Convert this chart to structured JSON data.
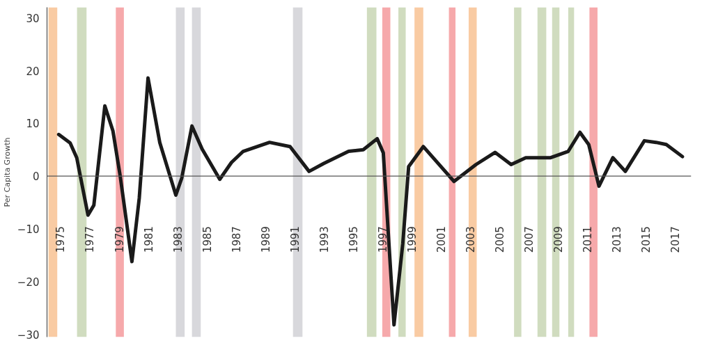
{
  "chart_data": {
    "type": "line",
    "ylabel": "Per Capita Growth",
    "x": [
      1974.9,
      1975.68,
      1976.13,
      1976.9,
      1977.3,
      1978.05,
      1978.6,
      1979.1,
      1979.9,
      1980.4,
      1981.0,
      1981.8,
      1982.9,
      1983.3,
      1984.0,
      1984.7,
      1985.9,
      1986.7,
      1987.5,
      1989.3,
      1990.7,
      1992.0,
      1993.0,
      1994.7,
      1995.7,
      1996.65,
      1997.07,
      1997.8,
      1998.4,
      1998.8,
      1999.8,
      2001.9,
      2003.4,
      2004.7,
      2005.8,
      2006.8,
      2008.5,
      2009.7,
      2010.5,
      2011.1,
      2011.8,
      2012.75,
      2013.6,
      2014.9,
      2015.7,
      2016.4,
      2017.5
    ],
    "series": [
      {
        "color": "#1a1a1a",
        "values": [
          7.9,
          6.3,
          3.5,
          -7.4,
          -5.5,
          13.3,
          8.6,
          0,
          -16.2,
          -4.2,
          18.6,
          6.4,
          -3.6,
          -0.4,
          9.5,
          5.1,
          -0.6,
          2.6,
          4.7,
          6.4,
          5.6,
          0.9,
          2.4,
          4.7,
          5.0,
          7.1,
          4.4,
          -28.2,
          -12.8,
          1.8,
          5.6,
          -1.0,
          2.2,
          4.5,
          2.2,
          3.5,
          3.5,
          4.7,
          8.3,
          6.0,
          -1.9,
          3.5,
          0.9,
          6.7,
          6.4,
          6.0,
          3.7
        ]
      }
    ],
    "xlim": [
      1974.1,
      2018.1
    ],
    "xticks": [
      1975,
      1977,
      1979,
      1981,
      1983,
      1985,
      1987,
      1989,
      1991,
      1993,
      1995,
      1997,
      1999,
      2001,
      2003,
      2005,
      2007,
      2009,
      2011,
      2013,
      2015,
      2017
    ],
    "ylim": [
      -30.5,
      32
    ],
    "yticks": [
      -30,
      -20,
      -10,
      0,
      10,
      20,
      30
    ],
    "bands": [
      {
        "axis": "x",
        "from": 1974.2,
        "to": 1974.8,
        "color": "#f9cba3"
      },
      {
        "axis": "x",
        "from": 1976.15,
        "to": 1976.8,
        "color": "#d0dcbf"
      },
      {
        "axis": "x",
        "from": 1978.8,
        "to": 1979.35,
        "color": "#f6a9ab"
      },
      {
        "axis": "x",
        "from": 1982.9,
        "to": 1983.5,
        "color": "#d8d8dc"
      },
      {
        "axis": "x",
        "from": 1984.0,
        "to": 1984.6,
        "color": "#d8d8dc"
      },
      {
        "axis": "x",
        "from": 1990.9,
        "to": 1991.55,
        "color": "#d8d8dc"
      },
      {
        "axis": "x",
        "from": 1995.95,
        "to": 1996.6,
        "color": "#d0dcbf"
      },
      {
        "axis": "x",
        "from": 1997.0,
        "to": 1997.55,
        "color": "#f6a9ab"
      },
      {
        "axis": "x",
        "from": 1998.1,
        "to": 1998.6,
        "color": "#d0dcbf"
      },
      {
        "axis": "x",
        "from": 1999.2,
        "to": 1999.8,
        "color": "#f9cba3"
      },
      {
        "axis": "x",
        "from": 2001.55,
        "to": 2002.0,
        "color": "#f6a9ab"
      },
      {
        "axis": "x",
        "from": 2002.9,
        "to": 2003.45,
        "color": "#f9cba3"
      },
      {
        "axis": "x",
        "from": 2006.0,
        "to": 2006.5,
        "color": "#d0dcbf"
      },
      {
        "axis": "x",
        "from": 2007.6,
        "to": 2008.2,
        "color": "#d0dcbf"
      },
      {
        "axis": "x",
        "from": 2008.6,
        "to": 2009.1,
        "color": "#d0dcbf"
      },
      {
        "axis": "x",
        "from": 2009.7,
        "to": 2010.1,
        "color": "#d0dcbf"
      },
      {
        "axis": "x",
        "from": 2011.15,
        "to": 2011.7,
        "color": "#f6a9ab"
      }
    ],
    "ref_lines": [
      {
        "axis": "y",
        "value": 0,
        "color": "#555555"
      }
    ],
    "grid": false,
    "marker": "none",
    "line_style": "solid"
  }
}
